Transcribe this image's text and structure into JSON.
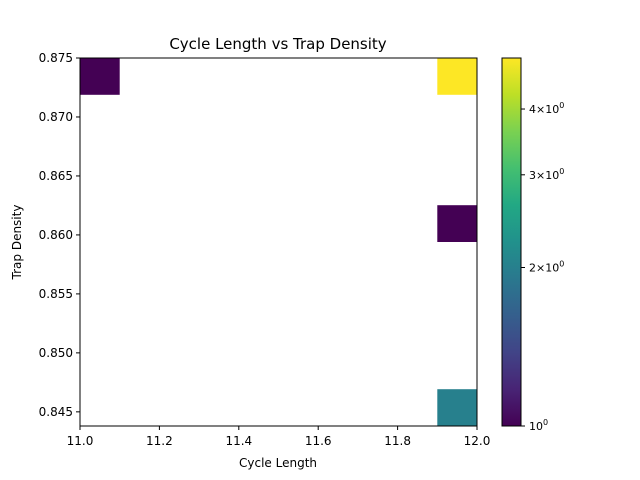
{
  "chart_data": {
    "type": "heatmap",
    "title": "Cycle Length vs Trap Density",
    "xlabel": "Cycle Length",
    "ylabel": "Trap Density",
    "xlim": [
      11.0,
      12.0
    ],
    "ylim": [
      0.8438,
      0.875
    ],
    "xticks": [
      "11.0",
      "11.2",
      "11.4",
      "11.6",
      "11.8",
      "12.0"
    ],
    "yticks": [
      "0.845",
      "0.850",
      "0.855",
      "0.860",
      "0.865",
      "0.870",
      "0.875"
    ],
    "colormap": "viridis",
    "color_scale": "log",
    "color_range": [
      1,
      5
    ],
    "colorbar": {
      "ticks": [
        {
          "value": 1,
          "base": "10",
          "exp": "0",
          "coef": ""
        },
        {
          "value": 2,
          "base": "10",
          "exp": "0",
          "coef": "2×"
        },
        {
          "value": 3,
          "base": "10",
          "exp": "0",
          "coef": "3×"
        },
        {
          "value": 4,
          "base": "10",
          "exp": "0",
          "coef": "4×"
        }
      ]
    },
    "bin_width": 0.1,
    "bin_height": 0.00312,
    "cells": [
      {
        "x": 11.0,
        "y": 0.87188,
        "count": 1
      },
      {
        "x": 11.9,
        "y": 0.87188,
        "count": 5
      },
      {
        "x": 11.9,
        "y": 0.8594,
        "count": 1
      },
      {
        "x": 11.9,
        "y": 0.8438,
        "count": 2
      }
    ]
  }
}
